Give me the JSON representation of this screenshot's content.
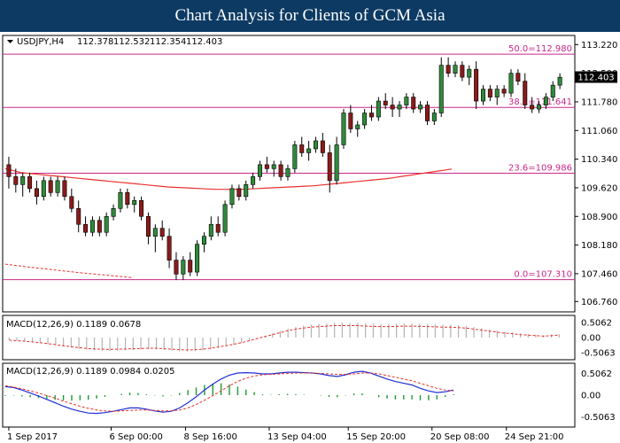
{
  "header": {
    "title": "Chart Analysis for Clients of GCM Asia"
  },
  "chart_data": {
    "type": "candlestick",
    "symbol_header": {
      "symbol": "USDJPY,H4",
      "open": "112.378",
      "high": "112.532",
      "low": "112.354",
      "close": "112.403"
    },
    "current_price": "112.403",
    "y_axis": {
      "ylim": [
        106.5,
        113.45
      ],
      "ticks": [
        "113.220",
        "112.500",
        "111.780",
        "111.060",
        "110.340",
        "109.620",
        "108.900",
        "108.180",
        "107.460",
        "106.760"
      ]
    },
    "x_axis": {
      "ticks": [
        "1 Sep 2017",
        "6 Sep 00:00",
        "8 Sep 16:00",
        "13 Sep 04:00",
        "15 Sep 20:00",
        "20 Sep 08:00",
        "24 Sep 21:00"
      ],
      "tick_index": [
        0,
        22,
        38,
        56,
        73,
        91,
        107
      ]
    },
    "fib_levels": [
      {
        "label": "50.0=112.980",
        "value": 112.98
      },
      {
        "label": "38.2=111.641",
        "value": 111.641
      },
      {
        "label": "23.6=109.986",
        "value": 109.986
      },
      {
        "label": "0.0=107.310",
        "value": 107.31
      }
    ],
    "candles": [
      [
        110.2,
        110.4,
        109.6,
        109.9
      ],
      [
        109.9,
        110.1,
        109.5,
        109.7
      ],
      [
        109.7,
        110.0,
        109.4,
        109.9
      ],
      [
        109.9,
        110.0,
        109.5,
        109.6
      ],
      [
        109.6,
        109.8,
        109.2,
        109.4
      ],
      [
        109.4,
        109.9,
        109.3,
        109.8
      ],
      [
        109.8,
        109.9,
        109.4,
        109.5
      ],
      [
        109.5,
        109.9,
        109.4,
        109.8
      ],
      [
        109.8,
        109.9,
        109.3,
        109.4
      ],
      [
        109.4,
        109.6,
        109.0,
        109.1
      ],
      [
        109.1,
        109.3,
        108.5,
        108.7
      ],
      [
        108.7,
        108.9,
        108.4,
        108.5
      ],
      [
        108.5,
        108.9,
        108.4,
        108.8
      ],
      [
        108.8,
        108.9,
        108.4,
        108.5
      ],
      [
        108.5,
        109.0,
        108.4,
        108.9
      ],
      [
        108.9,
        109.2,
        108.8,
        109.1
      ],
      [
        109.1,
        109.6,
        109.0,
        109.5
      ],
      [
        109.5,
        109.6,
        109.1,
        109.2
      ],
      [
        109.2,
        109.4,
        109.0,
        109.3
      ],
      [
        109.3,
        109.4,
        108.8,
        108.9
      ],
      [
        108.9,
        109.0,
        108.2,
        108.4
      ],
      [
        108.4,
        108.7,
        108.0,
        108.6
      ],
      [
        108.6,
        108.8,
        108.3,
        108.4
      ],
      [
        108.4,
        108.6,
        107.6,
        107.8
      ],
      [
        107.8,
        108.0,
        107.3,
        107.45
      ],
      [
        107.45,
        107.9,
        107.3,
        107.8
      ],
      [
        107.8,
        108.0,
        107.4,
        107.5
      ],
      [
        107.5,
        108.3,
        107.4,
        108.2
      ],
      [
        108.2,
        108.5,
        108.0,
        108.4
      ],
      [
        108.4,
        108.9,
        108.3,
        108.7
      ],
      [
        108.7,
        108.9,
        108.4,
        108.5
      ],
      [
        108.5,
        109.3,
        108.4,
        109.2
      ],
      [
        109.2,
        109.7,
        109.1,
        109.6
      ],
      [
        109.6,
        109.7,
        109.3,
        109.4
      ],
      [
        109.4,
        109.8,
        109.3,
        109.7
      ],
      [
        109.7,
        110.0,
        109.6,
        109.9
      ],
      [
        109.9,
        110.3,
        109.8,
        110.2
      ],
      [
        110.2,
        110.4,
        110.0,
        110.1
      ],
      [
        110.1,
        110.3,
        109.9,
        110.2
      ],
      [
        110.2,
        110.3,
        109.8,
        109.9
      ],
      [
        109.9,
        110.2,
        109.8,
        110.1
      ],
      [
        110.1,
        110.8,
        110.0,
        110.7
      ],
      [
        110.7,
        110.9,
        110.4,
        110.5
      ],
      [
        110.5,
        110.8,
        110.3,
        110.6
      ],
      [
        110.6,
        110.9,
        110.5,
        110.8
      ],
      [
        110.8,
        111.0,
        110.4,
        110.5
      ],
      [
        110.5,
        110.7,
        109.5,
        109.8
      ],
      [
        109.8,
        110.9,
        109.7,
        110.7
      ],
      [
        110.7,
        111.6,
        110.6,
        111.5
      ],
      [
        111.5,
        111.7,
        111.0,
        111.1
      ],
      [
        111.1,
        111.3,
        110.9,
        111.2
      ],
      [
        111.2,
        111.6,
        111.1,
        111.5
      ],
      [
        111.5,
        111.7,
        111.3,
        111.4
      ],
      [
        111.4,
        111.9,
        111.3,
        111.8
      ],
      [
        111.8,
        112.0,
        111.6,
        111.7
      ],
      [
        111.7,
        111.9,
        111.4,
        111.6
      ],
      [
        111.6,
        111.8,
        111.4,
        111.7
      ],
      [
        111.7,
        112.0,
        111.6,
        111.9
      ],
      [
        111.9,
        112.0,
        111.5,
        111.6
      ],
      [
        111.6,
        111.8,
        111.5,
        111.7
      ],
      [
        111.7,
        111.8,
        111.2,
        111.3
      ],
      [
        111.3,
        111.6,
        111.2,
        111.5
      ],
      [
        111.5,
        112.9,
        111.4,
        112.7
      ],
      [
        112.7,
        112.9,
        112.4,
        112.5
      ],
      [
        112.5,
        112.8,
        112.4,
        112.7
      ],
      [
        112.7,
        112.8,
        112.3,
        112.4
      ],
      [
        112.4,
        112.7,
        112.2,
        112.6
      ],
      [
        112.6,
        112.8,
        111.6,
        111.8
      ],
      [
        111.8,
        112.2,
        111.7,
        112.1
      ],
      [
        112.1,
        112.2,
        111.8,
        111.9
      ],
      [
        111.9,
        112.2,
        111.7,
        112.1
      ],
      [
        112.1,
        112.2,
        111.9,
        112.0
      ],
      [
        112.0,
        112.6,
        111.9,
        112.5
      ],
      [
        112.5,
        112.6,
        112.2,
        112.3
      ],
      [
        112.3,
        112.5,
        111.6,
        111.7
      ],
      [
        111.7,
        111.9,
        111.5,
        111.6
      ],
      [
        111.6,
        111.8,
        111.5,
        111.7
      ],
      [
        111.7,
        112.0,
        111.6,
        111.9
      ],
      [
        111.9,
        112.3,
        111.8,
        112.2
      ],
      [
        112.2,
        112.5,
        112.1,
        112.4
      ]
    ],
    "sma": [
      110.1,
      110.05,
      110.0,
      109.98,
      109.96,
      109.94,
      109.92,
      109.9,
      109.88,
      109.86,
      109.84,
      109.82,
      109.8,
      109.78,
      109.76,
      109.74,
      109.72,
      109.7,
      109.68,
      109.66,
      109.64,
      109.63,
      109.62,
      109.61,
      109.6,
      109.59,
      109.58,
      109.58,
      109.58,
      109.58,
      109.59,
      109.6,
      109.61,
      109.62,
      109.63,
      109.64,
      109.65,
      109.66,
      109.67,
      109.69,
      109.71,
      109.73,
      109.75,
      109.77,
      109.79,
      109.81,
      109.83,
      109.85,
      109.88,
      109.91,
      109.94,
      109.97,
      110.0,
      110.03,
      110.06,
      110.09
    ],
    "sma_trailing_dashed": [
      107.7,
      107.62,
      107.55,
      107.48,
      107.42,
      107.36
    ],
    "macd1": {
      "label": "MACD(12,26,9) 0.1189 0.0678",
      "ticks": [
        "0.5062",
        "0.00",
        "-0.5063"
      ],
      "ylim": [
        -0.75,
        0.75
      ],
      "hist": [
        -0.08,
        -0.1,
        -0.12,
        -0.15,
        -0.18,
        -0.22,
        -0.26,
        -0.3,
        -0.34,
        -0.38,
        -0.41,
        -0.43,
        -0.44,
        -0.45,
        -0.44,
        -0.43,
        -0.42,
        -0.41,
        -0.4,
        -0.4,
        -0.42,
        -0.44,
        -0.46,
        -0.47,
        -0.46,
        -0.44,
        -0.4,
        -0.35,
        -0.3,
        -0.24,
        -0.18,
        -0.1,
        -0.02,
        0.06,
        0.14,
        0.22,
        0.3,
        0.36,
        0.4,
        0.44,
        0.46,
        0.48,
        0.5,
        0.5,
        0.5,
        0.5,
        0.48,
        0.47,
        0.46,
        0.46,
        0.47,
        0.48,
        0.48,
        0.47,
        0.46,
        0.45,
        0.44,
        0.44,
        0.42,
        0.4,
        0.36,
        0.32,
        0.28,
        0.24,
        0.2,
        0.18,
        0.14,
        0.12,
        0.1,
        0.08,
        0.1,
        0.12
      ]
    },
    "macd2": {
      "label": "MACD(12,26,9) 0.1189 0.0984 0.0205",
      "ticks": [
        "0.5062",
        "0.00",
        "-0.5063"
      ],
      "ylim": [
        -0.75,
        0.75
      ],
      "macd": [
        0.2,
        0.18,
        0.12,
        0.05,
        -0.02,
        -0.1,
        -0.18,
        -0.26,
        -0.33,
        -0.38,
        -0.42,
        -0.43,
        -0.41,
        -0.38,
        -0.34,
        -0.3,
        -0.3,
        -0.33,
        -0.37,
        -0.4,
        -0.38,
        -0.3,
        -0.18,
        -0.04,
        0.12,
        0.26,
        0.38,
        0.47,
        0.52,
        0.53,
        0.52,
        0.5,
        0.5,
        0.52,
        0.54,
        0.54,
        0.53,
        0.52,
        0.5,
        0.46,
        0.44,
        0.48,
        0.54,
        0.56,
        0.52,
        0.45,
        0.38,
        0.32,
        0.28,
        0.24,
        0.16,
        0.1,
        0.06,
        0.08,
        0.12
      ],
      "signal": [
        0.22,
        0.19,
        0.15,
        0.1,
        0.05,
        -0.01,
        -0.07,
        -0.14,
        -0.2,
        -0.26,
        -0.31,
        -0.35,
        -0.37,
        -0.38,
        -0.37,
        -0.36,
        -0.35,
        -0.35,
        -0.36,
        -0.37,
        -0.37,
        -0.35,
        -0.3,
        -0.22,
        -0.12,
        -0.01,
        0.1,
        0.22,
        0.32,
        0.4,
        0.45,
        0.48,
        0.49,
        0.5,
        0.51,
        0.52,
        0.52,
        0.52,
        0.51,
        0.5,
        0.49,
        0.49,
        0.5,
        0.52,
        0.52,
        0.5,
        0.46,
        0.42,
        0.38,
        0.34,
        0.28,
        0.22,
        0.16,
        0.12,
        0.1
      ],
      "hist": [
        -0.02,
        -0.01,
        -0.03,
        -0.05,
        -0.07,
        -0.09,
        -0.11,
        -0.12,
        -0.13,
        -0.12,
        -0.11,
        -0.08,
        -0.04,
        0.0,
        0.03,
        0.06,
        0.05,
        0.02,
        -0.01,
        -0.03,
        -0.01,
        0.05,
        0.12,
        0.18,
        0.24,
        0.27,
        0.28,
        0.25,
        0.2,
        0.13,
        0.07,
        0.02,
        0.01,
        0.02,
        0.03,
        0.02,
        0.01,
        0.0,
        -0.01,
        -0.04,
        -0.05,
        -0.01,
        0.04,
        0.04,
        0.0,
        -0.05,
        -0.08,
        -0.1,
        -0.1,
        -0.1,
        -0.12,
        -0.12,
        -0.1,
        -0.04,
        0.02
      ]
    }
  }
}
